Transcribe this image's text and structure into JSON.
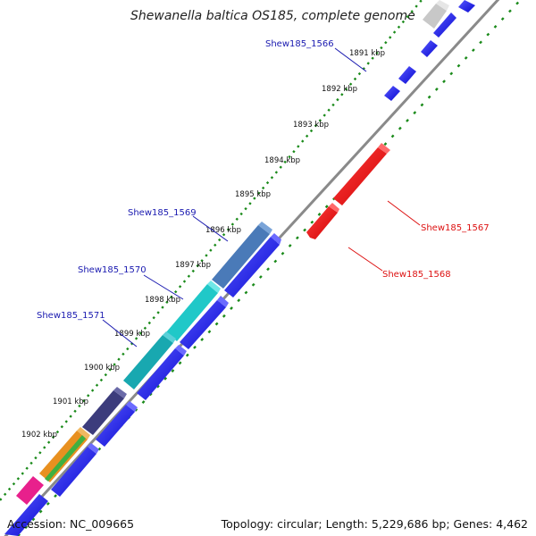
{
  "title": "Shewanella baltica OS185, complete genome",
  "ticks": [
    "1891 kbp",
    "1892 kbp",
    "1893 kbp",
    "1894 kbp",
    "1895 kbp",
    "1896 kbp",
    "1897 kbp",
    "1898 kbp",
    "1899 kbp",
    "1900 kbp",
    "1901 kbp",
    "1902 kbp"
  ],
  "gene_labels": {
    "shew1566": "Shew185_1566",
    "shew1567": "Shew185_1567",
    "shew1568": "Shew185_1568",
    "shew1569": "Shew185_1569",
    "shew1570": "Shew185_1570",
    "shew1571": "Shew185_1571"
  },
  "colors": {
    "forward_cds": "#0a0af0",
    "reverse_cds": "#f00000",
    "backbone": "#8a8a8a",
    "gc_dots": "#1a8a1a",
    "label_blue": "#1a1ab0",
    "label_red": "#dd1111"
  },
  "footer": {
    "accession": "Accession: NC_009665",
    "summary": "Topology: circular; Length: 5,229,686 bp; Genes: 4,462"
  }
}
